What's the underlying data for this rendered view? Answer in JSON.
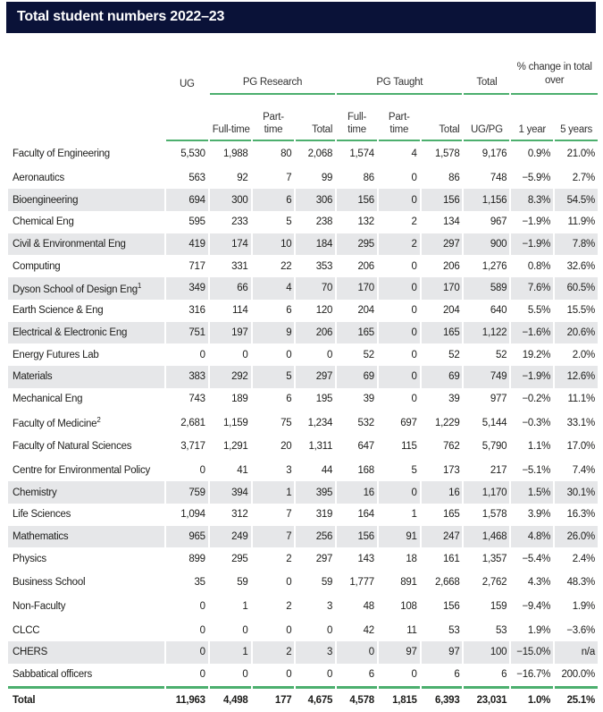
{
  "title": "Total student numbers 2022–23",
  "header": {
    "ug": "UG",
    "pg_research": "PG Research",
    "pg_taught": "PG Taught",
    "total": "Total",
    "change": "% change in total over",
    "sub": [
      "Full-time",
      "Part- time",
      "Total",
      "Full- time",
      "Part- time",
      "Total",
      "UG/PG",
      "1 year",
      "5 years"
    ]
  },
  "colors": {
    "faculty_green": "#1b9a42",
    "title_bg": "#0a1238",
    "stripe": "#e6e7e9",
    "faculty_bg": "#eaf5e8"
  },
  "rows": [
    {
      "type": "faculty",
      "label": "Faculty of Engineering",
      "values": [
        "5,530",
        "1,988",
        "80",
        "2,068",
        "1,574",
        "4",
        "1,578",
        "9,176",
        "0.9%",
        "21.0%"
      ]
    },
    {
      "type": "white",
      "label": "Aeronautics",
      "values": [
        "563",
        "92",
        "7",
        "99",
        "86",
        "0",
        "86",
        "748",
        "−5.9%",
        "2.7%"
      ]
    },
    {
      "type": "grey",
      "label": "Bioengineering",
      "values": [
        "694",
        "300",
        "6",
        "306",
        "156",
        "0",
        "156",
        "1,156",
        "8.3%",
        "54.5%"
      ]
    },
    {
      "type": "white",
      "label": "Chemical Eng",
      "values": [
        "595",
        "233",
        "5",
        "238",
        "132",
        "2",
        "134",
        "967",
        "−1.9%",
        "11.9%"
      ]
    },
    {
      "type": "grey",
      "label": "Civil & Environmental Eng",
      "values": [
        "419",
        "174",
        "10",
        "184",
        "295",
        "2",
        "297",
        "900",
        "−1.9%",
        "7.8%"
      ]
    },
    {
      "type": "white",
      "label": "Computing",
      "values": [
        "717",
        "331",
        "22",
        "353",
        "206",
        "0",
        "206",
        "1,276",
        "0.8%",
        "32.6%"
      ]
    },
    {
      "type": "grey",
      "label": "Dyson School of Design Eng",
      "note": "1",
      "values": [
        "349",
        "66",
        "4",
        "70",
        "170",
        "0",
        "170",
        "589",
        "7.6%",
        "60.5%"
      ]
    },
    {
      "type": "white",
      "label": "Earth Science & Eng",
      "values": [
        "316",
        "114",
        "6",
        "120",
        "204",
        "0",
        "204",
        "640",
        "5.5%",
        "15.5%"
      ]
    },
    {
      "type": "grey",
      "label": "Electrical & Electronic Eng",
      "values": [
        "751",
        "197",
        "9",
        "206",
        "165",
        "0",
        "165",
        "1,122",
        "−1.6%",
        "20.6%"
      ]
    },
    {
      "type": "white",
      "label": "Energy Futures Lab",
      "values": [
        "0",
        "0",
        "0",
        "0",
        "52",
        "0",
        "52",
        "52",
        "19.2%",
        "2.0%"
      ]
    },
    {
      "type": "grey",
      "label": "Materials",
      "values": [
        "383",
        "292",
        "5",
        "297",
        "69",
        "0",
        "69",
        "749",
        "−1.9%",
        "12.6%"
      ]
    },
    {
      "type": "white",
      "label": "Mechanical Eng",
      "values": [
        "743",
        "189",
        "6",
        "195",
        "39",
        "0",
        "39",
        "977",
        "−0.2%",
        "11.1%"
      ]
    },
    {
      "type": "faculty",
      "label": "Faculty of Medicine",
      "note": "2",
      "values": [
        "2,681",
        "1,159",
        "75",
        "1,234",
        "532",
        "697",
        "1,229",
        "5,144",
        "−0.3%",
        "33.1%"
      ]
    },
    {
      "type": "faculty",
      "label": "Faculty of Natural Sciences",
      "values": [
        "3,717",
        "1,291",
        "20",
        "1,311",
        "647",
        "115",
        "762",
        "5,790",
        "1.1%",
        "17.0%"
      ]
    },
    {
      "type": "white",
      "label": "Centre for Environmental Policy",
      "values": [
        "0",
        "41",
        "3",
        "44",
        "168",
        "5",
        "173",
        "217",
        "−5.1%",
        "7.4%"
      ]
    },
    {
      "type": "grey",
      "label": "Chemistry",
      "values": [
        "759",
        "394",
        "1",
        "395",
        "16",
        "0",
        "16",
        "1,170",
        "1.5%",
        "30.1%"
      ]
    },
    {
      "type": "white",
      "label": "Life Sciences",
      "values": [
        "1,094",
        "312",
        "7",
        "319",
        "164",
        "1",
        "165",
        "1,578",
        "3.9%",
        "16.3%"
      ]
    },
    {
      "type": "grey",
      "label": "Mathematics",
      "values": [
        "965",
        "249",
        "7",
        "256",
        "156",
        "91",
        "247",
        "1,468",
        "4.8%",
        "26.0%"
      ]
    },
    {
      "type": "white",
      "label": "Physics",
      "values": [
        "899",
        "295",
        "2",
        "297",
        "143",
        "18",
        "161",
        "1,357",
        "−5.4%",
        "2.4%"
      ]
    },
    {
      "type": "faculty",
      "label": "Business School",
      "values": [
        "35",
        "59",
        "0",
        "59",
        "1,777",
        "891",
        "2,668",
        "2,762",
        "4.3%",
        "48.3%"
      ]
    },
    {
      "type": "faculty",
      "label": "Non-Faculty",
      "values": [
        "0",
        "1",
        "2",
        "3",
        "48",
        "108",
        "156",
        "159",
        "−9.4%",
        "1.9%"
      ]
    },
    {
      "type": "white",
      "label": "CLCC",
      "values": [
        "0",
        "0",
        "0",
        "0",
        "42",
        "11",
        "53",
        "53",
        "1.9%",
        "−3.6%"
      ]
    },
    {
      "type": "grey",
      "label": "CHERS",
      "values": [
        "0",
        "1",
        "2",
        "3",
        "0",
        "97",
        "97",
        "100",
        "−15.0%",
        "n/a"
      ]
    },
    {
      "type": "white",
      "label": "Sabbatical officers",
      "values": [
        "0",
        "0",
        "0",
        "0",
        "6",
        "0",
        "6",
        "6",
        "−16.7%",
        "200.0%"
      ]
    },
    {
      "type": "total",
      "label": "Total",
      "values": [
        "11,963",
        "4,498",
        "177",
        "4,675",
        "4,578",
        "1,815",
        "6,393",
        "23,031",
        "1.0%",
        "25.1%"
      ]
    }
  ]
}
